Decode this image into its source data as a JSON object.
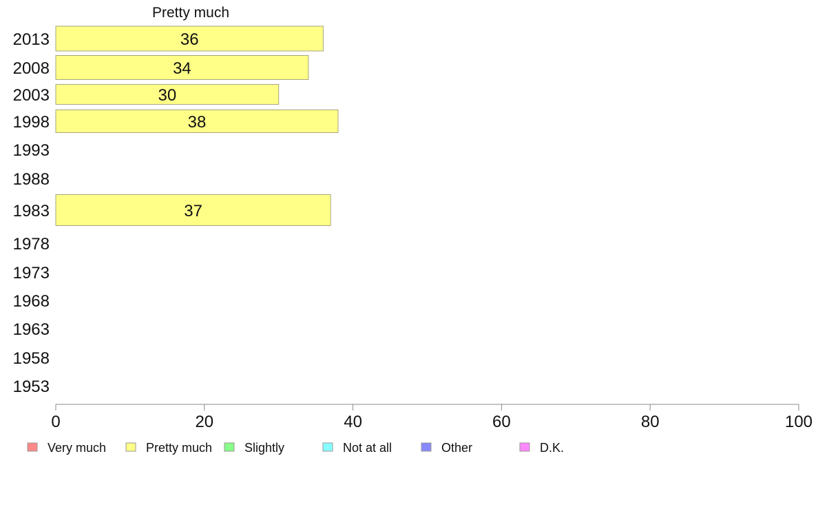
{
  "chart_data": {
    "type": "bar",
    "orientation": "horizontal",
    "panel_label": "Pretty much",
    "categories": [
      "2013",
      "2008",
      "2003",
      "1998",
      "1993",
      "1988",
      "1983",
      "1978",
      "1973",
      "1968",
      "1963",
      "1958",
      "1953"
    ],
    "series": [
      {
        "name": "Pretty much",
        "values": [
          36,
          34,
          30,
          38,
          null,
          null,
          37,
          null,
          null,
          null,
          null,
          null,
          null
        ],
        "color": "#ffff88"
      }
    ],
    "xlim": [
      0,
      100
    ],
    "xticks": [
      "0",
      "20",
      "40",
      "60",
      "80",
      "100"
    ],
    "grid": false,
    "legend_position": "bottom",
    "legend": [
      {
        "label": "Very much",
        "color": "#ff8888"
      },
      {
        "label": "Pretty much",
        "color": "#ffff88"
      },
      {
        "label": "Slightly",
        "color": "#88ff88"
      },
      {
        "label": "Not at all",
        "color": "#88ffff"
      },
      {
        "label": "Other",
        "color": "#8888ff"
      },
      {
        "label": "D.K.",
        "color": "#ff88ff"
      }
    ]
  }
}
